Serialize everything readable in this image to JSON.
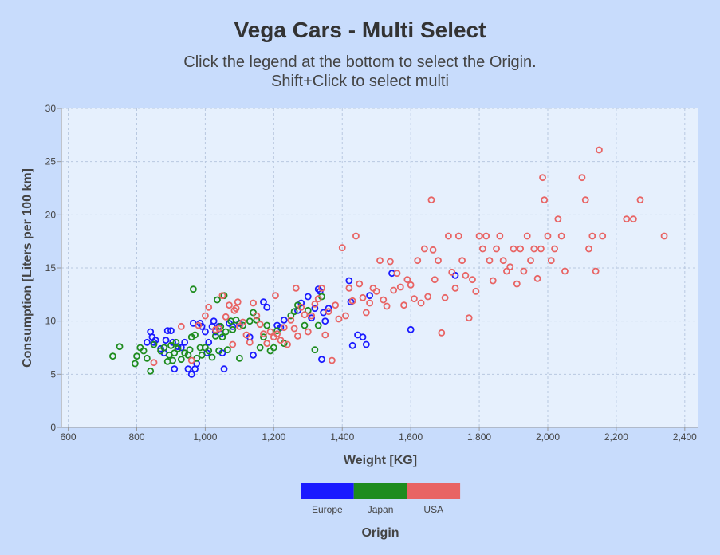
{
  "chart_data": {
    "type": "scatter",
    "title": "Vega Cars - Multi Select",
    "subtitle_lines": [
      "Click the legend at the bottom to select the Origin.",
      "Shift+Click to select multi"
    ],
    "xlabel": "Weight [KG]",
    "ylabel": "Consumption [Liters per 100 km]",
    "xlim": [
      580,
      2440
    ],
    "ylim": [
      0,
      30
    ],
    "x_ticks": [
      600,
      800,
      1000,
      1200,
      1400,
      1600,
      1800,
      2000,
      2200,
      2400
    ],
    "x_tick_labels": [
      "600",
      "800",
      "1,000",
      "1,200",
      "1,400",
      "1,600",
      "1,800",
      "2,000",
      "2,200",
      "2,400"
    ],
    "y_ticks": [
      0,
      5,
      10,
      15,
      20,
      25,
      30
    ],
    "y_tick_labels": [
      "0",
      "5",
      "10",
      "15",
      "20",
      "25",
      "30"
    ],
    "grid": true,
    "legend": {
      "title": "Origin",
      "placement": "bottom-center",
      "entries": [
        {
          "name": "Europe",
          "color": "#1a1aff"
        },
        {
          "name": "Japan",
          "color": "#1e8c1e"
        },
        {
          "name": "USA",
          "color": "#e86464"
        }
      ]
    },
    "series": [
      {
        "name": "Europe",
        "color": "#1a1aff",
        "points": [
          [
            830,
            8.0
          ],
          [
            840,
            9.0
          ],
          [
            845,
            8.5
          ],
          [
            850,
            8.0
          ],
          [
            855,
            8.2
          ],
          [
            870,
            7.4
          ],
          [
            880,
            7.0
          ],
          [
            885,
            8.2
          ],
          [
            890,
            9.1
          ],
          [
            900,
            9.1
          ],
          [
            905,
            8.0
          ],
          [
            910,
            5.5
          ],
          [
            920,
            7.6
          ],
          [
            930,
            7.5
          ],
          [
            940,
            8.0
          ],
          [
            950,
            5.5
          ],
          [
            960,
            5.0
          ],
          [
            965,
            9.8
          ],
          [
            970,
            5.5
          ],
          [
            975,
            6.0
          ],
          [
            985,
            9.8
          ],
          [
            990,
            9.5
          ],
          [
            1000,
            9.0
          ],
          [
            1005,
            7.0
          ],
          [
            1010,
            8.0
          ],
          [
            1020,
            9.5
          ],
          [
            1025,
            10.0
          ],
          [
            1030,
            9.0
          ],
          [
            1040,
            9.5
          ],
          [
            1045,
            8.8
          ],
          [
            1050,
            7.0
          ],
          [
            1055,
            5.5
          ],
          [
            1070,
            9.8
          ],
          [
            1080,
            9.5
          ],
          [
            1100,
            9.8
          ],
          [
            1130,
            8.5
          ],
          [
            1140,
            6.8
          ],
          [
            1170,
            11.8
          ],
          [
            1180,
            11.3
          ],
          [
            1210,
            9.6
          ],
          [
            1220,
            9.4
          ],
          [
            1230,
            10.1
          ],
          [
            1270,
            11.0
          ],
          [
            1280,
            11.7
          ],
          [
            1300,
            12.3
          ],
          [
            1310,
            10.3
          ],
          [
            1320,
            11.2
          ],
          [
            1330,
            13.0
          ],
          [
            1335,
            12.8
          ],
          [
            1340,
            6.4
          ],
          [
            1345,
            10.8
          ],
          [
            1350,
            10.0
          ],
          [
            1360,
            11.2
          ],
          [
            1420,
            13.8
          ],
          [
            1425,
            11.8
          ],
          [
            1430,
            7.7
          ],
          [
            1445,
            8.7
          ],
          [
            1460,
            8.5
          ],
          [
            1470,
            7.8
          ],
          [
            1480,
            12.4
          ],
          [
            1545,
            14.5
          ],
          [
            1600,
            9.2
          ],
          [
            1730,
            14.3
          ]
        ]
      },
      {
        "name": "Japan",
        "color": "#1e8c1e",
        "points": [
          [
            730,
            6.7
          ],
          [
            750,
            7.6
          ],
          [
            795,
            6.0
          ],
          [
            800,
            6.7
          ],
          [
            810,
            7.5
          ],
          [
            820,
            7.2
          ],
          [
            830,
            6.5
          ],
          [
            840,
            5.3
          ],
          [
            850,
            7.8
          ],
          [
            870,
            7.2
          ],
          [
            880,
            7.5
          ],
          [
            890,
            6.2
          ],
          [
            895,
            6.8
          ],
          [
            900,
            7.7
          ],
          [
            905,
            6.3
          ],
          [
            910,
            7.0
          ],
          [
            915,
            8.0
          ],
          [
            920,
            7.4
          ],
          [
            930,
            6.4
          ],
          [
            940,
            7.0
          ],
          [
            950,
            6.8
          ],
          [
            955,
            7.3
          ],
          [
            960,
            8.5
          ],
          [
            965,
            13.0
          ],
          [
            970,
            8.7
          ],
          [
            975,
            6.5
          ],
          [
            985,
            7.5
          ],
          [
            990,
            6.8
          ],
          [
            1000,
            7.5
          ],
          [
            1010,
            7.2
          ],
          [
            1020,
            6.6
          ],
          [
            1030,
            8.6
          ],
          [
            1035,
            12.0
          ],
          [
            1040,
            7.2
          ],
          [
            1045,
            9.5
          ],
          [
            1050,
            8.5
          ],
          [
            1055,
            12.4
          ],
          [
            1060,
            9.0
          ],
          [
            1065,
            7.3
          ],
          [
            1075,
            10.0
          ],
          [
            1080,
            9.2
          ],
          [
            1090,
            10.1
          ],
          [
            1100,
            6.5
          ],
          [
            1110,
            9.6
          ],
          [
            1130,
            10.0
          ],
          [
            1140,
            10.8
          ],
          [
            1150,
            10.1
          ],
          [
            1160,
            7.5
          ],
          [
            1170,
            8.5
          ],
          [
            1180,
            9.6
          ],
          [
            1190,
            7.2
          ],
          [
            1200,
            7.5
          ],
          [
            1210,
            9.1
          ],
          [
            1230,
            7.9
          ],
          [
            1250,
            10.5
          ],
          [
            1260,
            10.9
          ],
          [
            1270,
            11.5
          ],
          [
            1290,
            9.6
          ],
          [
            1300,
            11.0
          ],
          [
            1320,
            7.3
          ],
          [
            1330,
            9.6
          ],
          [
            1340,
            12.3
          ]
        ]
      },
      {
        "name": "USA",
        "color": "#e86464",
        "points": [
          [
            850,
            6.1
          ],
          [
            930,
            9.5
          ],
          [
            960,
            6.3
          ],
          [
            980,
            9.6
          ],
          [
            1000,
            10.5
          ],
          [
            1010,
            11.3
          ],
          [
            1030,
            9.2
          ],
          [
            1040,
            9.3
          ],
          [
            1050,
            12.4
          ],
          [
            1060,
            10.4
          ],
          [
            1070,
            11.5
          ],
          [
            1080,
            7.8
          ],
          [
            1085,
            11.0
          ],
          [
            1090,
            11.2
          ],
          [
            1095,
            11.8
          ],
          [
            1100,
            9.5
          ],
          [
            1110,
            9.9
          ],
          [
            1120,
            8.7
          ],
          [
            1130,
            8.0
          ],
          [
            1140,
            11.7
          ],
          [
            1150,
            10.5
          ],
          [
            1160,
            9.7
          ],
          [
            1170,
            8.8
          ],
          [
            1180,
            7.9
          ],
          [
            1190,
            9.0
          ],
          [
            1200,
            8.5
          ],
          [
            1205,
            12.4
          ],
          [
            1210,
            8.8
          ],
          [
            1220,
            8.2
          ],
          [
            1230,
            9.4
          ],
          [
            1240,
            7.8
          ],
          [
            1250,
            10.1
          ],
          [
            1260,
            9.3
          ],
          [
            1265,
            13.1
          ],
          [
            1270,
            8.6
          ],
          [
            1280,
            11.3
          ],
          [
            1290,
            10.6
          ],
          [
            1300,
            9.0
          ],
          [
            1310,
            10.5
          ],
          [
            1320,
            11.6
          ],
          [
            1330,
            12.1
          ],
          [
            1340,
            13.1
          ],
          [
            1350,
            8.7
          ],
          [
            1360,
            10.9
          ],
          [
            1370,
            6.3
          ],
          [
            1380,
            11.5
          ],
          [
            1390,
            10.2
          ],
          [
            1400,
            16.9
          ],
          [
            1410,
            10.5
          ],
          [
            1420,
            13.1
          ],
          [
            1430,
            11.9
          ],
          [
            1440,
            18.0
          ],
          [
            1450,
            13.5
          ],
          [
            1460,
            12.2
          ],
          [
            1470,
            10.8
          ],
          [
            1480,
            11.7
          ],
          [
            1490,
            13.1
          ],
          [
            1500,
            12.8
          ],
          [
            1510,
            15.7
          ],
          [
            1520,
            12.0
          ],
          [
            1530,
            11.4
          ],
          [
            1540,
            15.6
          ],
          [
            1550,
            12.9
          ],
          [
            1560,
            14.5
          ],
          [
            1570,
            13.2
          ],
          [
            1580,
            11.5
          ],
          [
            1590,
            13.9
          ],
          [
            1600,
            13.4
          ],
          [
            1610,
            12.1
          ],
          [
            1620,
            15.7
          ],
          [
            1630,
            11.7
          ],
          [
            1640,
            16.8
          ],
          [
            1650,
            12.3
          ],
          [
            1660,
            21.4
          ],
          [
            1665,
            16.7
          ],
          [
            1670,
            13.9
          ],
          [
            1680,
            15.7
          ],
          [
            1690,
            8.9
          ],
          [
            1700,
            12.2
          ],
          [
            1710,
            18.0
          ],
          [
            1720,
            14.6
          ],
          [
            1730,
            13.1
          ],
          [
            1740,
            18.0
          ],
          [
            1750,
            15.7
          ],
          [
            1760,
            14.3
          ],
          [
            1770,
            10.3
          ],
          [
            1780,
            13.9
          ],
          [
            1790,
            12.8
          ],
          [
            1800,
            18.0
          ],
          [
            1810,
            16.8
          ],
          [
            1820,
            18.0
          ],
          [
            1830,
            15.7
          ],
          [
            1840,
            13.8
          ],
          [
            1850,
            16.8
          ],
          [
            1860,
            18.0
          ],
          [
            1870,
            15.7
          ],
          [
            1880,
            14.7
          ],
          [
            1890,
            15.1
          ],
          [
            1900,
            16.8
          ],
          [
            1910,
            13.5
          ],
          [
            1920,
            16.8
          ],
          [
            1930,
            14.7
          ],
          [
            1940,
            18.0
          ],
          [
            1950,
            15.7
          ],
          [
            1960,
            16.8
          ],
          [
            1970,
            14.0
          ],
          [
            1980,
            16.8
          ],
          [
            1985,
            23.5
          ],
          [
            1990,
            21.4
          ],
          [
            2000,
            18.0
          ],
          [
            2010,
            15.7
          ],
          [
            2020,
            16.8
          ],
          [
            2030,
            19.6
          ],
          [
            2040,
            18.0
          ],
          [
            2050,
            14.7
          ],
          [
            2100,
            23.5
          ],
          [
            2110,
            21.4
          ],
          [
            2120,
            16.8
          ],
          [
            2130,
            18.0
          ],
          [
            2140,
            14.7
          ],
          [
            2150,
            26.1
          ],
          [
            2160,
            18.0
          ],
          [
            2230,
            19.6
          ],
          [
            2250,
            19.6
          ],
          [
            2270,
            21.4
          ],
          [
            2340,
            18.0
          ]
        ]
      }
    ]
  }
}
